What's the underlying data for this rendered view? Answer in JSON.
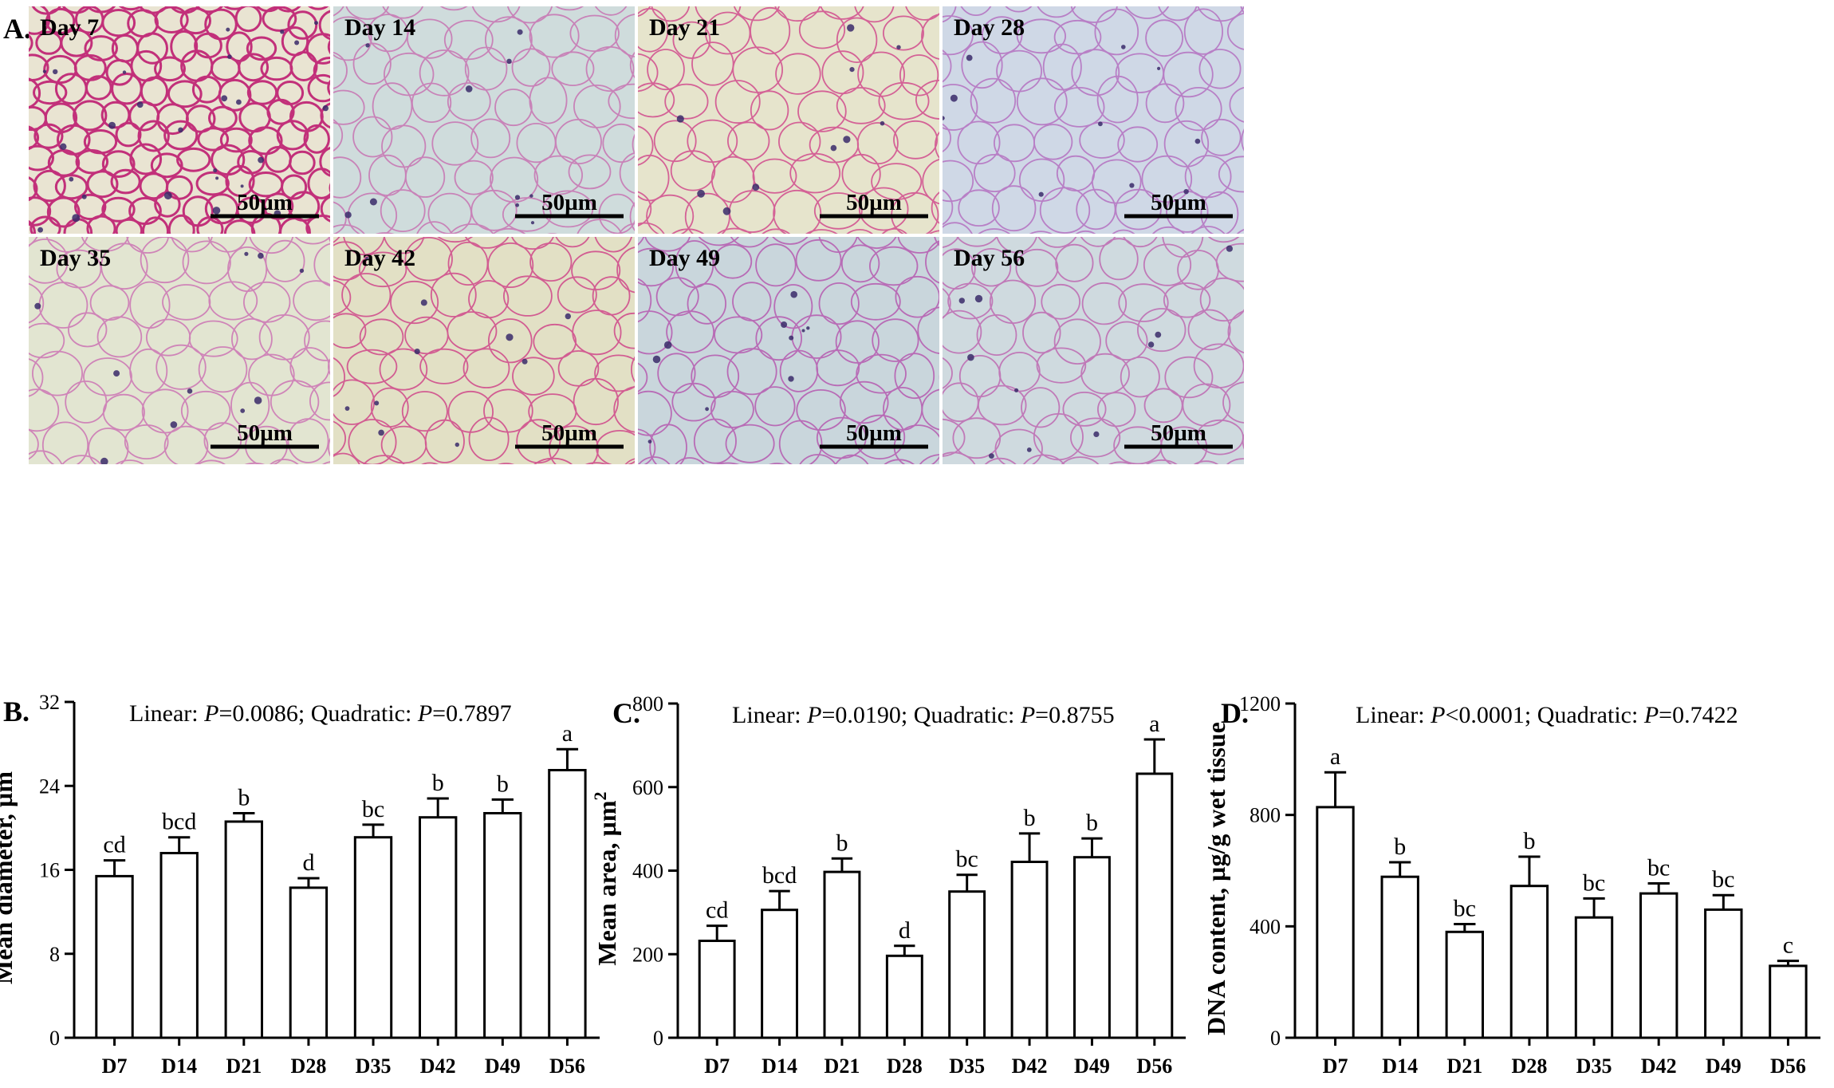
{
  "figure": {
    "panel_a_label": "A.",
    "micrographs": [
      {
        "day": "Day 7",
        "scale": "50µm",
        "tone": "#e9e4d2",
        "stain": "#c2307a",
        "dense": true
      },
      {
        "day": "Day 14",
        "scale": "50µm",
        "tone": "#cfdcdc",
        "stain": "#c883b8",
        "dense": false
      },
      {
        "day": "Day 21",
        "scale": "50µm",
        "tone": "#e6e4cc",
        "stain": "#d46296",
        "dense": false
      },
      {
        "day": "Day 28",
        "scale": "50µm",
        "tone": "#cfd8e6",
        "stain": "#b880c6",
        "dense": false
      },
      {
        "day": "Day 35",
        "scale": "50µm",
        "tone": "#e2e5d1",
        "stain": "#cf85b8",
        "dense": false
      },
      {
        "day": "Day 42",
        "scale": "50µm",
        "tone": "#e2e0c5",
        "stain": "#d25d92",
        "dense": false
      },
      {
        "day": "Day 49",
        "scale": "50µm",
        "tone": "#c9d6dc",
        "stain": "#b86cb6",
        "dense": false
      },
      {
        "day": "Day 56",
        "scale": "50µm",
        "tone": "#cfdadf",
        "stain": "#c07ab8",
        "dense": false
      }
    ]
  },
  "chart_data": [
    {
      "panel": "B.",
      "type": "bar",
      "title_prefix_1": "Linear: ",
      "title_p_1": "P",
      "title_value_1": "=0.0086; Quadratic: ",
      "title_p_2": "P",
      "title_value_2": "=0.7897",
      "ylabel": "Mean diameter, µm",
      "ylabel_sup": "",
      "ylim": [
        0,
        32
      ],
      "yticks": [
        0,
        8,
        16,
        24,
        32
      ],
      "categories": [
        "D7",
        "D14",
        "D21",
        "D28",
        "D35",
        "D42",
        "D49",
        "D56"
      ],
      "values": [
        15.4,
        17.6,
        20.6,
        14.3,
        19.1,
        21.0,
        21.4,
        25.5
      ],
      "errors": [
        1.5,
        1.5,
        0.8,
        0.9,
        1.2,
        1.8,
        1.3,
        2.0
      ],
      "letters": [
        "cd",
        "bcd",
        "b",
        "d",
        "bc",
        "b",
        "b",
        "a"
      ]
    },
    {
      "panel": "C.",
      "type": "bar",
      "title_prefix_1": "Linear: ",
      "title_p_1": "P",
      "title_value_1": "=0.0190; Quadratic: ",
      "title_p_2": "P",
      "title_value_2": "=0.8755",
      "ylabel": "Mean area, µm",
      "ylabel_sup": "2",
      "ylim": [
        0,
        800
      ],
      "yticks": [
        0,
        200,
        400,
        600,
        800
      ],
      "categories": [
        "D7",
        "D14",
        "D21",
        "D28",
        "D35",
        "D42",
        "D49",
        "D56"
      ],
      "values": [
        232,
        306,
        397,
        196,
        350,
        421,
        432,
        632
      ],
      "errors": [
        36,
        45,
        32,
        24,
        40,
        68,
        45,
        82
      ],
      "letters": [
        "cd",
        "bcd",
        "b",
        "d",
        "bc",
        "b",
        "b",
        "a"
      ]
    },
    {
      "panel": "D.",
      "type": "bar",
      "title_prefix_1": "Linear: ",
      "title_p_1": "P",
      "title_value_1": "<0.0001; Quadratic: ",
      "title_p_2": "P",
      "title_value_2": "=0.7422",
      "ylabel": "DNA content, µg/g wet tissue",
      "ylabel_sup": "",
      "ylim": [
        0,
        1200
      ],
      "yticks": [
        0,
        400,
        800,
        1200
      ],
      "categories": [
        "D7",
        "D14",
        "D21",
        "D28",
        "D35",
        "D42",
        "D49",
        "D56"
      ],
      "values": [
        828,
        578,
        380,
        545,
        432,
        518,
        460,
        258
      ],
      "errors": [
        125,
        52,
        28,
        105,
        68,
        36,
        52,
        18
      ],
      "letters": [
        "a",
        "b",
        "bc",
        "b",
        "bc",
        "bc",
        "bc",
        "c"
      ]
    }
  ]
}
